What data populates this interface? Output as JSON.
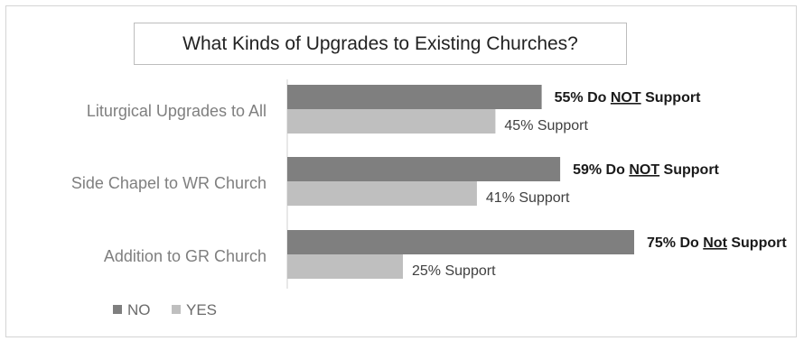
{
  "chart_data": {
    "type": "bar",
    "orientation": "horizontal",
    "title": "What Kinds of Upgrades to Existing Churches?",
    "categories": [
      "Liturgical Upgrades to All",
      "Side Chapel to WR Church",
      "Addition to GR Church"
    ],
    "series": [
      {
        "name": "NO",
        "values": [
          55,
          59,
          75
        ],
        "color": "#7f7f7f",
        "labels": [
          {
            "pre": "55% Do ",
            "u": "NOT",
            "post": " Support"
          },
          {
            "pre": "59% Do ",
            "u": "NOT",
            "post": " Support"
          },
          {
            "pre": "75% Do ",
            "u": "Not",
            "post": " Support"
          }
        ]
      },
      {
        "name": "YES",
        "values": [
          45,
          41,
          25
        ],
        "color": "#bfbfbf",
        "labels": [
          "45% Support",
          "41% Support",
          "25% Support"
        ]
      }
    ],
    "xlim": [
      0,
      75
    ],
    "grid": false,
    "legend_position": "bottom-left"
  }
}
